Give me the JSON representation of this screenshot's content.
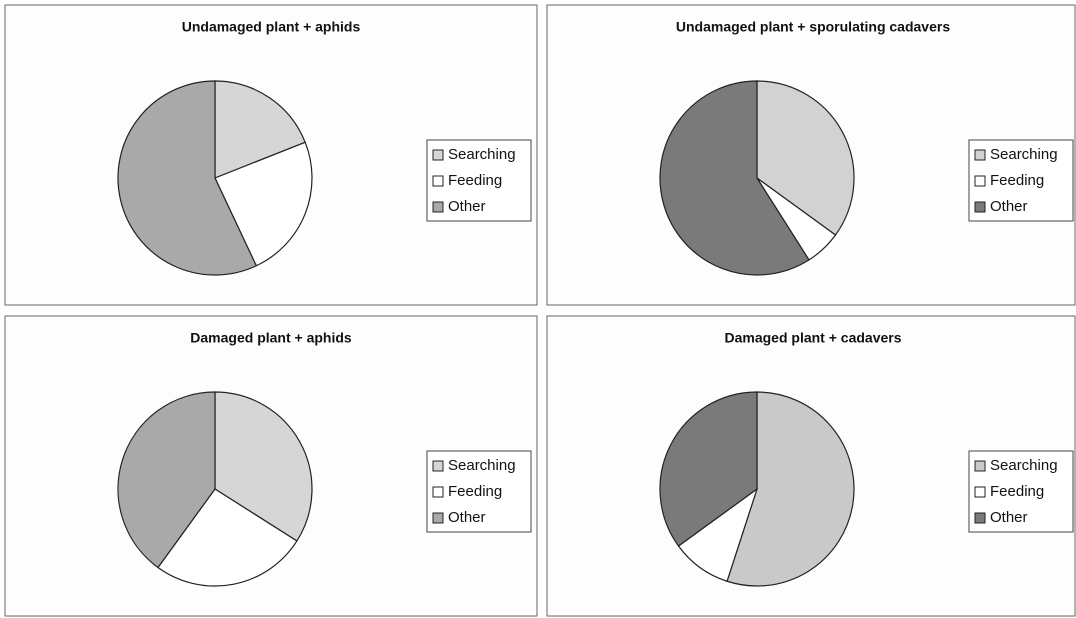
{
  "chart_data": [
    {
      "type": "pie",
      "title": "Undamaged plant + aphids",
      "categories": [
        "Searching",
        "Feeding",
        "Other"
      ],
      "values": [
        19,
        24,
        57
      ],
      "colors": [
        "#d6d6d6",
        "#ffffff",
        "#a9a9a9"
      ]
    },
    {
      "type": "pie",
      "title": "Undamaged plant  + sporulating cadavers",
      "categories": [
        "Searching",
        "Feeding",
        "Other"
      ],
      "values": [
        35,
        6,
        59
      ],
      "colors": [
        "#d2d2d2",
        "#ffffff",
        "#7a7a7a"
      ]
    },
    {
      "type": "pie",
      "title": "Damaged plant + aphids",
      "categories": [
        "Searching",
        "Feeding",
        "Other"
      ],
      "values": [
        34,
        26,
        40
      ],
      "colors": [
        "#d6d6d6",
        "#ffffff",
        "#a9a9a9"
      ]
    },
    {
      "type": "pie",
      "title": "Damaged plant + cadavers",
      "categories": [
        "Searching",
        "Feeding",
        "Other"
      ],
      "values": [
        55,
        10,
        35
      ],
      "colors": [
        "#c9c9c9",
        "#ffffff",
        "#7a7a7a"
      ]
    }
  ]
}
